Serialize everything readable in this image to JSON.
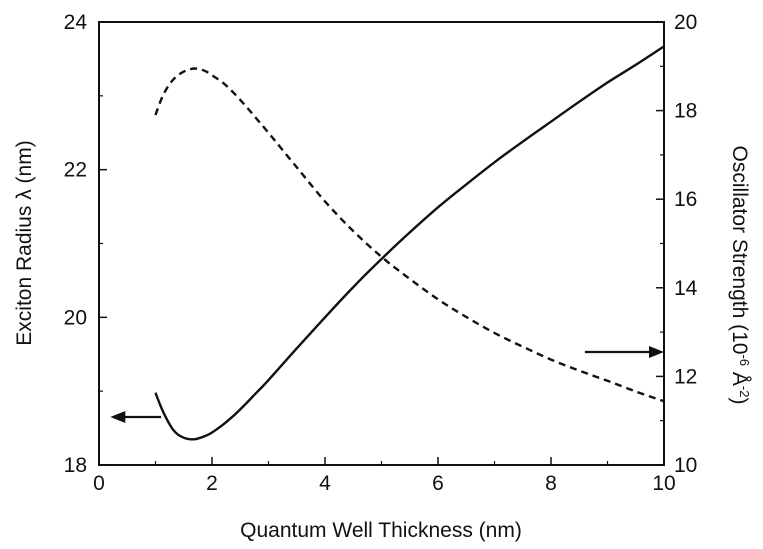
{
  "chart_data": {
    "type": "line",
    "title": "",
    "xlabel": "Quantum Well Thickness (nm)",
    "ylabel_left": "Exciton Radius λ (nm)",
    "ylabel_right_prefix": "Oscillator Strength (10",
    "ylabel_right_exp1": "-6",
    "ylabel_right_mid": " Å",
    "ylabel_right_exp2": "-2",
    "ylabel_right_suffix": ")",
    "xlim": [
      0,
      10
    ],
    "ylim_left": [
      18,
      24
    ],
    "ylim_right": [
      10,
      20
    ],
    "x_ticks": [
      "0",
      "2",
      "4",
      "6",
      "8",
      "10"
    ],
    "y_left_ticks": [
      "18",
      "20",
      "22",
      "24"
    ],
    "y_right_ticks": [
      "10",
      "12",
      "14",
      "16",
      "18",
      "20"
    ],
    "grid": false,
    "legend": "none",
    "series": [
      {
        "axis": "left",
        "style": "solid",
        "x": [
          1.0,
          1.1,
          1.2,
          1.3,
          1.4,
          1.5,
          1.6,
          1.7,
          1.8,
          1.9,
          2.0,
          2.2,
          2.4,
          2.6,
          2.8,
          3.0,
          3.5,
          4.0,
          4.5,
          5.0,
          5.5,
          6.0,
          6.5,
          7.0,
          7.5,
          8.0,
          8.5,
          9.0,
          9.5,
          10.0
        ],
        "y": [
          18.98,
          18.78,
          18.62,
          18.49,
          18.41,
          18.37,
          18.35,
          18.35,
          18.37,
          18.4,
          18.44,
          18.55,
          18.68,
          18.83,
          18.99,
          19.15,
          19.58,
          20.0,
          20.41,
          20.79,
          21.15,
          21.49,
          21.8,
          22.1,
          22.38,
          22.65,
          22.92,
          23.18,
          23.42,
          23.67
        ]
      },
      {
        "axis": "right",
        "style": "dashed",
        "x": [
          1.0,
          1.1,
          1.2,
          1.3,
          1.4,
          1.5,
          1.6,
          1.7,
          1.8,
          1.9,
          2.0,
          2.2,
          2.4,
          2.6,
          2.8,
          3.0,
          3.5,
          4.0,
          4.5,
          5.0,
          5.5,
          6.0,
          6.5,
          7.0,
          7.5,
          8.0,
          8.5,
          9.0,
          9.5,
          10.0
        ],
        "y": [
          17.9,
          18.25,
          18.5,
          18.68,
          18.8,
          18.88,
          18.93,
          18.95,
          18.93,
          18.88,
          18.8,
          18.62,
          18.38,
          18.1,
          17.8,
          17.5,
          16.72,
          15.95,
          15.28,
          14.7,
          14.2,
          13.74,
          13.34,
          12.98,
          12.67,
          12.38,
          12.13,
          11.9,
          11.66,
          11.44
        ]
      }
    ],
    "annotations": [
      {
        "type": "arrow",
        "direction": "left",
        "points_to_axis": "left",
        "at_x": [
          0.2,
          1.1
        ],
        "at_y_left": 18.65
      },
      {
        "type": "arrow",
        "direction": "right",
        "points_to_axis": "right",
        "at_x": [
          8.6,
          10.0
        ],
        "at_y_right": 12.55
      }
    ]
  }
}
